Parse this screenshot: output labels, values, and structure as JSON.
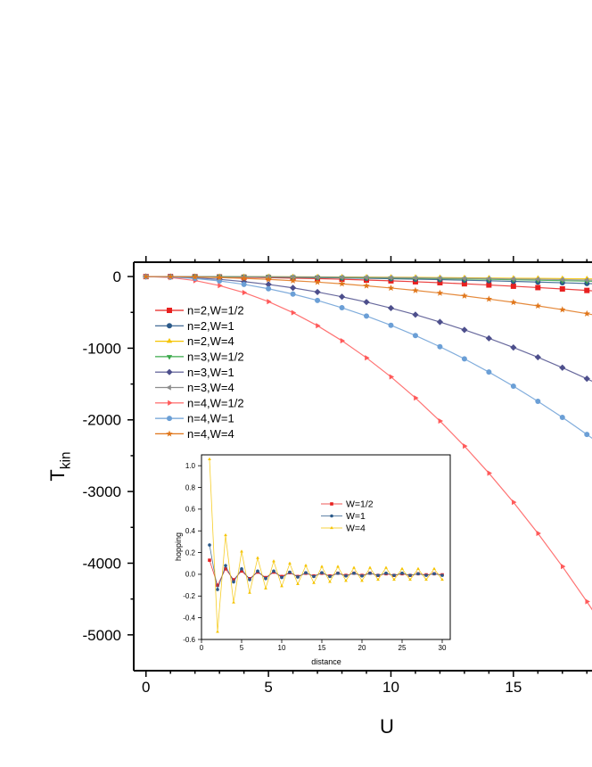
{
  "chart_data": [
    {
      "type": "line",
      "xlabel": "U",
      "ylabel": "T",
      "ylabel_sub": "kin",
      "xlim": [
        -0.5,
        18.5
      ],
      "ylim": [
        -5500,
        200
      ],
      "xticks": [
        0,
        5,
        10,
        15
      ],
      "xtick_labels": [
        "0",
        "5",
        "10",
        "15"
      ],
      "yticks": [
        0,
        -1000,
        -2000,
        -3000,
        -4000,
        -5000
      ],
      "ytick_labels": [
        "0",
        "-1000",
        "-2000",
        "-3000",
        "-4000",
        "-5000"
      ],
      "legend_position": "upper-left",
      "series": [
        {
          "name": "n=2,W=1/2",
          "color": "#e8201f",
          "marker": "square",
          "x": [
            0,
            1,
            2,
            3,
            4,
            5,
            6,
            7,
            8,
            9,
            10,
            11,
            12,
            13,
            14,
            15,
            16,
            17,
            18,
            19
          ],
          "y": [
            0,
            -0.6,
            -2.4,
            -5.4,
            -9.6,
            -15,
            -22,
            -29,
            -38,
            -49,
            -60,
            -73,
            -86,
            -101,
            -118,
            -135,
            -154,
            -173,
            -194,
            -217
          ]
        },
        {
          "name": "n=2,W=1",
          "color": "#2b5a8a",
          "marker": "circle",
          "x": [
            0,
            1,
            2,
            3,
            4,
            5,
            6,
            7,
            8,
            9,
            10,
            11,
            12,
            13,
            14,
            15,
            16,
            17,
            18,
            19
          ],
          "y": [
            0,
            -0.3,
            -1.2,
            -2.7,
            -4.8,
            -7.5,
            -11,
            -15,
            -19,
            -24,
            -30,
            -36,
            -43,
            -51,
            -59,
            -68,
            -77,
            -87,
            -97,
            -108
          ]
        },
        {
          "name": "n=2,W=4",
          "color": "#f5c400",
          "marker": "triangle-up",
          "x": [
            0,
            1,
            2,
            3,
            4,
            5,
            6,
            7,
            8,
            9,
            10,
            11,
            12,
            13,
            14,
            15,
            16,
            17,
            18,
            19
          ],
          "y": [
            0,
            -0.1,
            -0.4,
            -0.9,
            -1.6,
            -2.5,
            -3.6,
            -4.9,
            -6.4,
            -8.1,
            -10,
            -12,
            -14,
            -17,
            -20,
            -23,
            -26,
            -29,
            -32,
            -36
          ]
        },
        {
          "name": "n=3,W=1/2",
          "color": "#3aa84a",
          "marker": "triangle-down",
          "x": [
            0,
            1,
            2,
            3,
            4,
            5,
            6,
            7,
            8,
            9,
            10,
            11,
            12,
            13,
            14,
            15,
            16,
            17,
            18,
            19
          ],
          "y": [
            0,
            -0.2,
            -0.8,
            -1.8,
            -3.2,
            -5,
            -7.2,
            -9.8,
            -12.8,
            -16.2,
            -20,
            -24,
            -29,
            -34,
            -39,
            -45,
            -51,
            -58,
            -65,
            -72
          ]
        },
        {
          "name": "n=3,W=1",
          "color": "#4d4f8c",
          "marker": "diamond",
          "x": [
            0,
            1,
            2,
            3,
            4,
            5,
            6,
            7,
            8,
            9,
            10,
            11,
            12,
            13,
            14,
            15,
            16,
            17,
            18,
            19
          ],
          "y": [
            0,
            -4.4,
            -17.6,
            -39.6,
            -70.4,
            -110,
            -158,
            -216,
            -282,
            -356,
            -440,
            -532,
            -634,
            -744,
            -862,
            -990,
            -1126,
            -1272,
            -1426,
            -1588
          ]
        },
        {
          "name": "n=3,W=4",
          "color": "#8c8c8c",
          "marker": "triangle-left",
          "x": [
            0,
            1,
            2,
            3,
            4,
            5,
            6,
            7,
            8,
            9,
            10,
            11,
            12,
            13,
            14,
            15,
            16,
            17,
            18,
            19
          ],
          "y": [
            0,
            -0.15,
            -0.6,
            -1.35,
            -2.4,
            -3.75,
            -5.4,
            -7.35,
            -9.6,
            -12.15,
            -15,
            -18,
            -22,
            -25,
            -29,
            -34,
            -38,
            -43,
            -49,
            -54
          ]
        },
        {
          "name": "n=4,W=1/2",
          "color": "#ff5a5a",
          "marker": "triangle-right",
          "x": [
            0,
            1,
            2,
            3,
            4,
            5,
            6,
            7,
            8,
            9,
            10,
            11,
            12,
            13,
            14,
            15,
            16,
            17,
            18,
            19
          ],
          "y": [
            0,
            -14,
            -56,
            -126,
            -224,
            -350,
            -504,
            -686,
            -896,
            -1134,
            -1400,
            -1694,
            -2016,
            -2366,
            -2744,
            -3150,
            -3584,
            -4046,
            -4536,
            -5054
          ]
        },
        {
          "name": "n=4,W=1",
          "color": "#6b9fd6",
          "marker": "circle",
          "x": [
            0,
            1,
            2,
            3,
            4,
            5,
            6,
            7,
            8,
            9,
            10,
            11,
            12,
            13,
            14,
            15,
            16,
            17,
            18,
            19
          ],
          "y": [
            0,
            -6.8,
            -27,
            -61,
            -109,
            -170,
            -245,
            -333,
            -435,
            -551,
            -680,
            -823,
            -979,
            -1149,
            -1333,
            -1530,
            -1741,
            -1965,
            -2203,
            -2455
          ]
        },
        {
          "name": "n=4,W=4",
          "color": "#e0761a",
          "marker": "star",
          "x": [
            0,
            1,
            2,
            3,
            4,
            5,
            6,
            7,
            8,
            9,
            10,
            11,
            12,
            13,
            14,
            15,
            16,
            17,
            18,
            19
          ],
          "y": [
            0,
            -1.6,
            -6.4,
            -14.4,
            -25.6,
            -40,
            -58,
            -78,
            -102,
            -130,
            -160,
            -194,
            -230,
            -270,
            -314,
            -360,
            -410,
            -462,
            -518,
            -578
          ]
        }
      ]
    },
    {
      "type": "line",
      "xlabel": "distance",
      "ylabel": "hopping",
      "xlim": [
        0,
        31
      ],
      "ylim": [
        -0.6,
        1.1
      ],
      "xticks": [
        0,
        5,
        10,
        15,
        20,
        25,
        30
      ],
      "xtick_labels": [
        "0",
        "5",
        "10",
        "15",
        "20",
        "25",
        "30"
      ],
      "yticks": [
        1.0,
        0.8,
        0.6,
        0.4,
        0.2,
        0.0,
        -0.2,
        -0.4,
        -0.6
      ],
      "ytick_labels": [
        "1.0",
        "0.8",
        "0.6",
        "0.4",
        "0.2",
        "0.0",
        "-0.2",
        "-0.4",
        "-0.6"
      ],
      "legend_position": "upper-right",
      "series": [
        {
          "name": "W=1/2",
          "color": "#e8201f",
          "marker": "square",
          "x": [
            1,
            2,
            3,
            4,
            5,
            6,
            7,
            8,
            9,
            10,
            11,
            12,
            13,
            14,
            15,
            16,
            17,
            18,
            19,
            20,
            21,
            22,
            23,
            24,
            25,
            26,
            27,
            28,
            29,
            30
          ],
          "y": [
            0.13,
            -0.1,
            0.05,
            -0.05,
            0.03,
            -0.04,
            0.02,
            -0.03,
            0.02,
            -0.02,
            0.015,
            -0.02,
            0.01,
            -0.015,
            0.01,
            -0.015,
            0.01,
            -0.01,
            0.01,
            -0.01,
            0.01,
            -0.01,
            0.005,
            -0.01,
            0.005,
            -0.01,
            0.005,
            -0.005,
            0.005,
            -0.005
          ]
        },
        {
          "name": "W=1",
          "color": "#2b5a8a",
          "marker": "circle",
          "x": [
            1,
            2,
            3,
            4,
            5,
            6,
            7,
            8,
            9,
            10,
            11,
            12,
            13,
            14,
            15,
            16,
            17,
            18,
            19,
            20,
            21,
            22,
            23,
            24,
            25,
            26,
            27,
            28,
            29,
            30
          ],
          "y": [
            0.27,
            -0.14,
            0.08,
            -0.07,
            0.05,
            -0.05,
            0.03,
            -0.04,
            0.03,
            -0.03,
            0.02,
            -0.025,
            0.015,
            -0.02,
            0.015,
            -0.02,
            0.01,
            -0.015,
            0.01,
            -0.015,
            0.01,
            -0.01,
            0.01,
            -0.01,
            0.01,
            -0.01,
            0.005,
            -0.01,
            0.005,
            -0.01
          ]
        },
        {
          "name": "W=4",
          "color": "#f5c400",
          "marker": "triangle-up",
          "x": [
            1,
            2,
            3,
            4,
            5,
            6,
            7,
            8,
            9,
            10,
            11,
            12,
            13,
            14,
            15,
            16,
            17,
            18,
            19,
            20,
            21,
            22,
            23,
            24,
            25,
            26,
            27,
            28,
            29,
            30
          ],
          "y": [
            1.06,
            -0.53,
            0.36,
            -0.26,
            0.21,
            -0.17,
            0.15,
            -0.13,
            0.12,
            -0.11,
            0.1,
            -0.09,
            0.08,
            -0.08,
            0.07,
            -0.07,
            0.07,
            -0.06,
            0.06,
            -0.06,
            0.06,
            -0.05,
            0.06,
            -0.05,
            0.05,
            -0.05,
            0.05,
            -0.05,
            0.05,
            -0.05
          ]
        }
      ]
    }
  ]
}
